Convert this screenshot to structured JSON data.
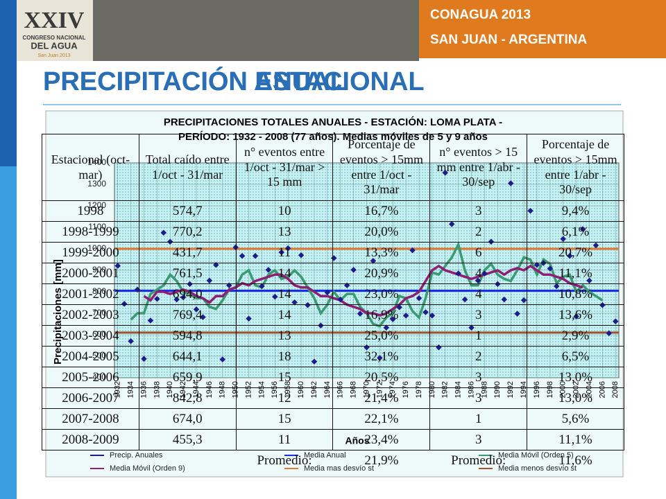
{
  "header": {
    "logo": [
      "XXIV",
      "CONGRESO NACIONAL",
      "DEL AGUA",
      "San Juan 2013"
    ],
    "event": "CONAGUA 2013",
    "place": "SAN JUAN  - ARGENTINA",
    "titles": [
      "PRECIPITACIÓN ANUAL",
      "PRECIPITACIÓN ESTACIONAL"
    ]
  },
  "chart_data": {
    "type": "line",
    "title": [
      "PRECIPITACIONES TOTALES ANUALES - ESTACIÓN: LOMA PLATA -",
      "PERÍODO: 1932 - 2008 (77 años). Medias móviles de 5 y 9 años"
    ],
    "y_label": "Precipitaciones [mm]",
    "x_label": "Años",
    "x": [
      1932,
      1933,
      1934,
      1935,
      1936,
      1937,
      1938,
      1939,
      1940,
      1941,
      1942,
      1943,
      1944,
      1945,
      1946,
      1947,
      1948,
      1949,
      1950,
      1951,
      1952,
      1953,
      1954,
      1955,
      1956,
      1957,
      1958,
      1959,
      1960,
      1961,
      1962,
      1963,
      1964,
      1965,
      1966,
      1967,
      1968,
      1969,
      1970,
      1971,
      1972,
      1973,
      1974,
      1975,
      1976,
      1977,
      1978,
      1979,
      1980,
      1981,
      1982,
      1983,
      1984,
      1985,
      1986,
      1987,
      1988,
      1989,
      1990,
      1991,
      1992,
      1993,
      1994,
      1995,
      1996,
      1997,
      1998,
      1999,
      2000,
      2001,
      2002,
      2003,
      2004,
      2005,
      2006,
      2007,
      2008
    ],
    "xlim": [
      1931.5,
      2008.5
    ],
    "ylim": [
      400,
      1400
    ],
    "xticks": [
      1932,
      1934,
      1936,
      1938,
      1940,
      1942,
      1944,
      1946,
      1948,
      1950,
      1952,
      1954,
      1956,
      1958,
      1960,
      1962,
      1964,
      1966,
      1968,
      1970,
      1972,
      1974,
      1976,
      1978,
      1980,
      1982,
      1984,
      1986,
      1988,
      1990,
      1992,
      1994,
      1996,
      1998,
      2000,
      2002,
      2004,
      2006,
      2008
    ],
    "yticks": [
      400,
      500,
      600,
      700,
      800,
      900,
      1000,
      1100,
      1200,
      1300,
      1400
    ],
    "grid": true,
    "legend_position": "bottom",
    "series": [
      {
        "name": "Precip. Anuales",
        "color": "#1c1c8c",
        "mode": "markers",
        "values": [
          921,
          744,
          570,
          810,
          488,
          666,
          767,
          1075,
          1033,
          764,
          774,
          836,
          718,
          682,
          852,
          925,
          485,
          830,
          1007,
          967,
          675,
          967,
          826,
          902,
          777,
          984,
          1003,
          751,
          970,
          738,
          475,
          643,
          797,
          957,
          764,
          830,
          902,
          698,
          541,
          944,
          492,
          633,
          672,
          728,
          689,
          993,
          770,
          705,
          689,
          541,
          1354,
          1115,
          885,
          764,
          633,
          852,
          885,
          1033,
          836,
          764,
          1305,
          698,
          761,
          1177,
          925,
          934,
          908,
          826,
          1046,
          967,
          685,
          1092,
          852,
          1016,
          738,
          607,
          662
        ]
      },
      {
        "name": "Media Anual",
        "color": "#1a2cf0",
        "mode": "hline",
        "value": 805
      },
      {
        "name": "Media Móvil (Orden 5)",
        "color": "#3a9a72",
        "mode": "line",
        "values": [
          null,
          null,
          670,
          700,
          700,
          790,
          810,
          830,
          880,
          850,
          800,
          790,
          770,
          770,
          730,
          720,
          760,
          810,
          820,
          880,
          900,
          830,
          820,
          880,
          900,
          860,
          870,
          900,
          870,
          820,
          770,
          700,
          740,
          800,
          760,
          790,
          790,
          730,
          700,
          650,
          640,
          680,
          700,
          780,
          770,
          710,
          680,
          770,
          890,
          880,
          920,
          960,
          1020,
          900,
          830,
          830,
          900,
          930,
          880,
          860,
          850,
          900,
          960,
          950,
          880,
          950,
          930,
          840,
          870,
          880,
          800,
          830,
          800,
          780,
          760,
          null,
          null
        ]
      },
      {
        "name": "Media Móvil (Orden 9)",
        "color": "#8e1f74",
        "mode": "line",
        "values": [
          null,
          null,
          null,
          null,
          780,
          760,
          800,
          800,
          790,
          800,
          810,
          800,
          780,
          770,
          750,
          780,
          780,
          810,
          820,
          840,
          830,
          850,
          860,
          870,
          880,
          880,
          860,
          830,
          820,
          820,
          800,
          780,
          780,
          770,
          760,
          740,
          730,
          720,
          700,
          700,
          690,
          700,
          720,
          740,
          770,
          780,
          800,
          850,
          900,
          920,
          900,
          890,
          880,
          870,
          860,
          870,
          880,
          890,
          900,
          880,
          900,
          910,
          900,
          920,
          900,
          880,
          880,
          870,
          860,
          840,
          830,
          820,
          null,
          null,
          null,
          null,
          null
        ]
      },
      {
        "name": "Media mas desvío st",
        "color": "#e8772e",
        "mode": "hline",
        "value": 1000
      },
      {
        "name": "Media menos desvío st",
        "color": "#a0522d",
        "mode": "hline",
        "value": 610
      }
    ]
  },
  "table": {
    "header": [
      "Estacional (oct-mar)",
      "Total caído entre 1/oct - 31/mar",
      "n° eventos entre 1/oct - 31/mar > 15 mm",
      "Porcentaje de eventos > 15mm entre 1/oct - 31/mar",
      "n° eventos > 15 mm entre 1/abr - 30/sep",
      "Porcentaje de eventos > 15mm entre 1/abr - 30/sep"
    ],
    "rows": [
      [
        "1998",
        "574,7",
        "10",
        "16,7%",
        "3",
        "9,4%"
      ],
      [
        "1998-1999",
        "770,2",
        "13",
        "20,0%",
        "2",
        "6,1%"
      ],
      [
        "1999-2000",
        "431,7",
        "11",
        "13,3%",
        "6",
        "20,7%"
      ],
      [
        "2000-2001",
        "761,5",
        "14",
        "20,9%",
        "4",
        "11,1%"
      ],
      [
        "2001-2002",
        "694,0",
        "14",
        "23,0%",
        "4",
        "10,8%"
      ],
      [
        "2002-2003",
        "769,4",
        "14",
        "16,9%",
        "3",
        "13,6%"
      ],
      [
        "2003-2004",
        "594,8",
        "13",
        "25,0%",
        "1",
        "2,9%"
      ],
      [
        "2004-2005",
        "644,1",
        "18",
        "32,1%",
        "2",
        "6,5%"
      ],
      [
        "2005-2006",
        "659,9",
        "15",
        "20,5%",
        "3",
        "13,0%"
      ],
      [
        "2006-2007",
        "842,8",
        "12",
        "21,4%",
        "3",
        "13,0%"
      ],
      [
        "2007-2008",
        "674,0",
        "15",
        "22,1%",
        "1",
        "5,6%"
      ],
      [
        "2008-2009",
        "455,3",
        "11",
        "23,4%",
        "3",
        "11,1%"
      ]
    ],
    "footer": [
      "Promedio:",
      "21,9%",
      "Promedio:",
      "11,6%"
    ]
  }
}
